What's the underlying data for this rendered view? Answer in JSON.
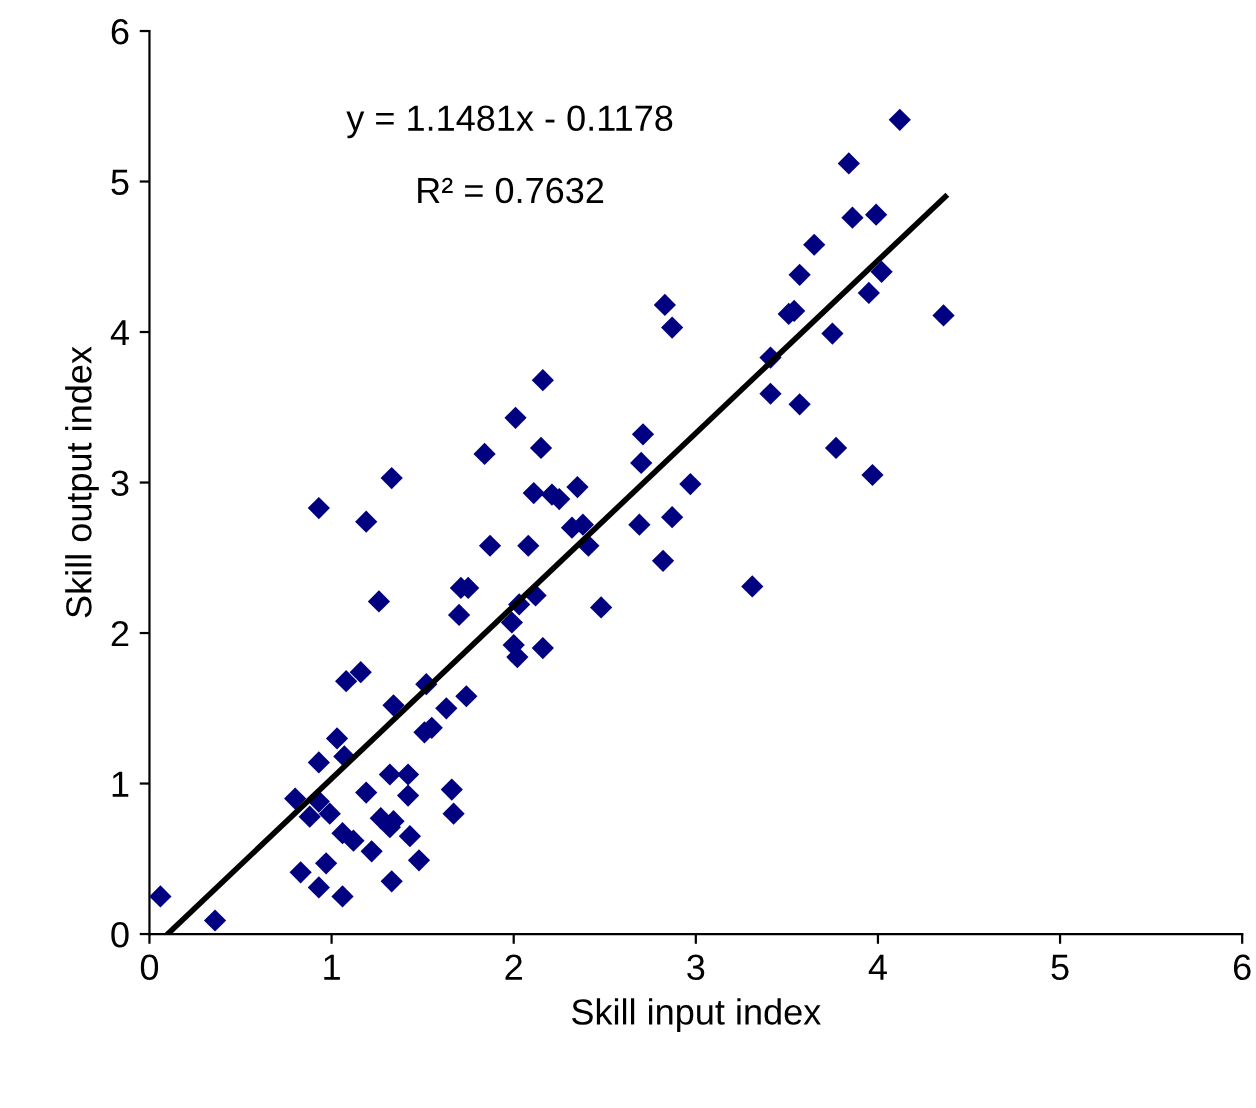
{
  "chart_data": {
    "type": "scatter",
    "xlabel": "Skill input index",
    "ylabel": "Skill output index",
    "annotations": [
      "y = 1.1481x - 0.1178",
      "R² = 0.7632"
    ],
    "xlim": [
      0,
      6
    ],
    "ylim": [
      0,
      6
    ],
    "xticks": [
      0,
      1,
      2,
      3,
      4,
      5,
      6
    ],
    "yticks": [
      0,
      1,
      2,
      3,
      4,
      5,
      6
    ],
    "grid": false,
    "legend": false,
    "series": [
      {
        "color": "#000080",
        "marker": "diamond",
        "x": [
          0.06,
          0.36,
          0.8,
          0.83,
          0.93,
          0.97,
          1.06,
          0.88,
          0.93,
          0.99,
          0.93,
          1.03,
          1.07,
          1.08,
          1.16,
          1.26,
          1.06,
          1.12,
          1.19,
          1.22,
          1.27,
          1.32,
          1.34,
          1.32,
          1.42,
          1.42,
          1.43,
          1.48,
          1.33,
          1.34,
          1.52,
          1.51,
          1.55,
          1.63,
          1.74,
          1.66,
          1.67,
          1.7,
          0.93,
          1.33,
          1.19,
          1.71,
          1.75,
          1.87,
          1.84,
          2.01,
          2.16,
          2.15,
          2.11,
          2.21,
          2.25,
          2.35,
          2.08,
          2.32,
          2.38,
          2.41,
          1.99,
          2.03,
          2.12,
          2.0,
          2.02,
          2.16,
          2.48,
          2.69,
          2.82,
          2.87,
          2.97,
          2.71,
          2.7,
          2.83,
          2.87,
          4.12,
          3.84,
          3.86,
          3.99,
          3.65,
          3.57,
          4.02,
          3.95,
          3.51,
          3.54,
          4.36,
          3.75,
          3.41,
          3.41,
          3.57,
          3.31,
          3.77,
          3.97
        ],
        "values": [
          0.25,
          0.09,
          0.9,
          0.41,
          0.31,
          0.47,
          0.25,
          0.78,
          0.88,
          0.8,
          1.14,
          1.3,
          1.18,
          1.68,
          1.74,
          2.21,
          0.67,
          0.62,
          0.94,
          0.55,
          0.77,
          0.71,
          0.75,
          1.06,
          1.06,
          0.92,
          0.65,
          0.49,
          0.35,
          1.52,
          1.66,
          1.34,
          1.37,
          1.5,
          1.58,
          0.96,
          0.8,
          2.12,
          2.83,
          3.03,
          2.74,
          2.3,
          2.3,
          2.58,
          3.19,
          3.43,
          3.68,
          3.23,
          2.93,
          2.92,
          2.89,
          2.97,
          2.58,
          2.7,
          2.72,
          2.58,
          2.07,
          2.19,
          2.25,
          1.92,
          1.84,
          1.9,
          2.17,
          2.72,
          2.48,
          2.77,
          2.99,
          3.32,
          3.13,
          4.18,
          4.03,
          5.41,
          5.12,
          4.76,
          4.78,
          4.58,
          4.38,
          4.4,
          4.26,
          4.12,
          4.14,
          4.11,
          3.99,
          3.83,
          3.59,
          3.52,
          2.31,
          3.23,
          3.05
        ]
      },
      {
        "type": "line",
        "color": "#000000",
        "line_style": "solid",
        "x": [
          0.1,
          4.37
        ],
        "values": [
          0.0,
          4.9
        ]
      }
    ]
  }
}
